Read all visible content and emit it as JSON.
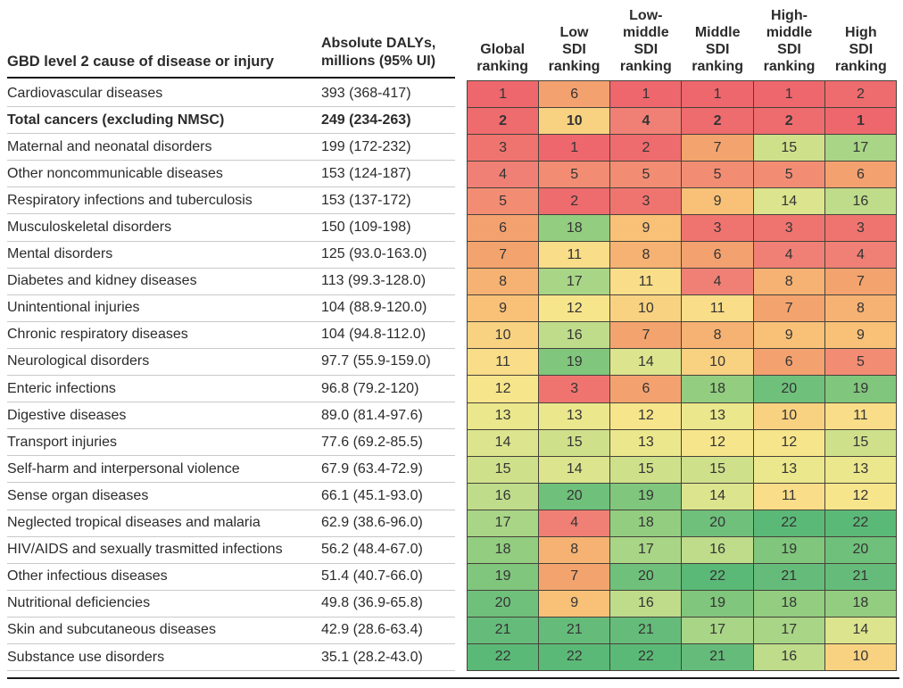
{
  "labels": {
    "cause_header": "GBD level 2 cause of disease or injury",
    "dalys_header_line1": "Absolute DALYs,",
    "dalys_header_line2": "millions (95% UI)"
  },
  "colors": {
    "grid_border": "#46423a",
    "header_rule": "#1a1a1a",
    "row_separator": "#c9c9c9",
    "text": "#2b2b2b",
    "rank_palette": [
      "#ed676d",
      "#ee6b6e",
      "#ef746f",
      "#f08075",
      "#f28d74",
      "#f4a170",
      "#f3a36d",
      "#f6b273",
      "#f8c177",
      "#f8d281",
      "#f9dd88",
      "#f6e58b",
      "#ebe78c",
      "#dce48e",
      "#cfe08b",
      "#bedc8a",
      "#a8d586",
      "#92cd80",
      "#80c67d",
      "#6fc07b",
      "#65bc7a",
      "#5bb977"
    ]
  },
  "chart_data": {
    "type": "heatmap",
    "title": "",
    "value_domain": [
      1,
      22
    ],
    "color_scale_note": "rank 1 = red, rank 22 = green",
    "columns": [
      "Global ranking",
      "Low SDI ranking",
      "Low-middle SDI ranking",
      "Middle SDI ranking",
      "High-middle SDI ranking",
      "High SDI ranking"
    ],
    "column_header_lines": [
      [
        "Global",
        "ranking"
      ],
      [
        "Low",
        "SDI",
        "ranking"
      ],
      [
        "Low-",
        "middle",
        "SDI",
        "ranking"
      ],
      [
        "Middle",
        "SDI",
        "ranking"
      ],
      [
        "High-",
        "middle",
        "SDI",
        "ranking"
      ],
      [
        "High",
        "SDI",
        "ranking"
      ]
    ],
    "rows": [
      {
        "cause": "Cardiovascular diseases",
        "dalys": "393 (368-417)",
        "bold": false,
        "ranks": [
          1,
          6,
          1,
          1,
          1,
          2
        ]
      },
      {
        "cause": "Total cancers (excluding NMSC)",
        "dalys": "249 (234-263)",
        "bold": true,
        "ranks": [
          2,
          10,
          4,
          2,
          2,
          1
        ]
      },
      {
        "cause": "Maternal and neonatal disorders",
        "dalys": "199 (172-232)",
        "bold": false,
        "ranks": [
          3,
          1,
          2,
          7,
          15,
          17
        ]
      },
      {
        "cause": "Other noncommunicable diseases",
        "dalys": "153 (124-187)",
        "bold": false,
        "ranks": [
          4,
          5,
          5,
          5,
          5,
          6
        ]
      },
      {
        "cause": "Respiratory infections and tuberculosis",
        "dalys": "153 (137-172)",
        "bold": false,
        "ranks": [
          5,
          2,
          3,
          9,
          14,
          16
        ]
      },
      {
        "cause": "Musculoskeletal disorders",
        "dalys": "150 (109-198)",
        "bold": false,
        "ranks": [
          6,
          18,
          9,
          3,
          3,
          3
        ]
      },
      {
        "cause": "Mental disorders",
        "dalys": "125 (93.0-163.0)",
        "bold": false,
        "ranks": [
          7,
          11,
          8,
          6,
          4,
          4
        ]
      },
      {
        "cause": "Diabetes and kidney diseases",
        "dalys": "113 (99.3-128.0)",
        "bold": false,
        "ranks": [
          8,
          17,
          11,
          4,
          8,
          7
        ]
      },
      {
        "cause": "Unintentional injuries",
        "dalys": "104 (88.9-120.0)",
        "bold": false,
        "ranks": [
          9,
          12,
          10,
          11,
          7,
          8
        ]
      },
      {
        "cause": "Chronic respiratory diseases",
        "dalys": "104 (94.8-112.0)",
        "bold": false,
        "ranks": [
          10,
          16,
          7,
          8,
          9,
          9
        ]
      },
      {
        "cause": "Neurological disorders",
        "dalys": "97.7 (55.9-159.0)",
        "bold": false,
        "ranks": [
          11,
          19,
          14,
          10,
          6,
          5
        ]
      },
      {
        "cause": "Enteric infections",
        "dalys": "96.8 (79.2-120)",
        "bold": false,
        "ranks": [
          12,
          3,
          6,
          18,
          20,
          19
        ]
      },
      {
        "cause": "Digestive diseases",
        "dalys": "89.0 (81.4-97.6)",
        "bold": false,
        "ranks": [
          13,
          13,
          12,
          13,
          10,
          11
        ]
      },
      {
        "cause": "Transport injuries",
        "dalys": "77.6 (69.2-85.5)",
        "bold": false,
        "ranks": [
          14,
          15,
          13,
          12,
          12,
          15
        ]
      },
      {
        "cause": "Self-harm and interpersonal violence",
        "dalys": "67.9 (63.4-72.9)",
        "bold": false,
        "ranks": [
          15,
          14,
          15,
          15,
          13,
          13
        ]
      },
      {
        "cause": "Sense organ diseases",
        "dalys": "66.1 (45.1-93.0)",
        "bold": false,
        "ranks": [
          16,
          20,
          19,
          14,
          11,
          12
        ]
      },
      {
        "cause": "Neglected tropical diseases and malaria",
        "dalys": "62.9 (38.6-96.0)",
        "bold": false,
        "ranks": [
          17,
          4,
          18,
          20,
          22,
          22
        ]
      },
      {
        "cause": "HIV/AIDS and sexually trasmitted infections",
        "dalys": "56.2 (48.4-67.0)",
        "bold": false,
        "ranks": [
          18,
          8,
          17,
          16,
          19,
          20
        ]
      },
      {
        "cause": "Other infectious diseases",
        "dalys": "51.4 (40.7-66.0)",
        "bold": false,
        "ranks": [
          19,
          7,
          20,
          22,
          21,
          21
        ]
      },
      {
        "cause": "Nutritional deficiencies",
        "dalys": "49.8 (36.9-65.8)",
        "bold": false,
        "ranks": [
          20,
          9,
          16,
          19,
          18,
          18
        ]
      },
      {
        "cause": "Skin and subcutaneous diseases",
        "dalys": "42.9 (28.6-63.4)",
        "bold": false,
        "ranks": [
          21,
          21,
          21,
          17,
          17,
          14
        ]
      },
      {
        "cause": "Substance use disorders",
        "dalys": "35.1 (28.2-43.0)",
        "bold": false,
        "ranks": [
          22,
          22,
          22,
          21,
          16,
          10
        ]
      }
    ]
  }
}
